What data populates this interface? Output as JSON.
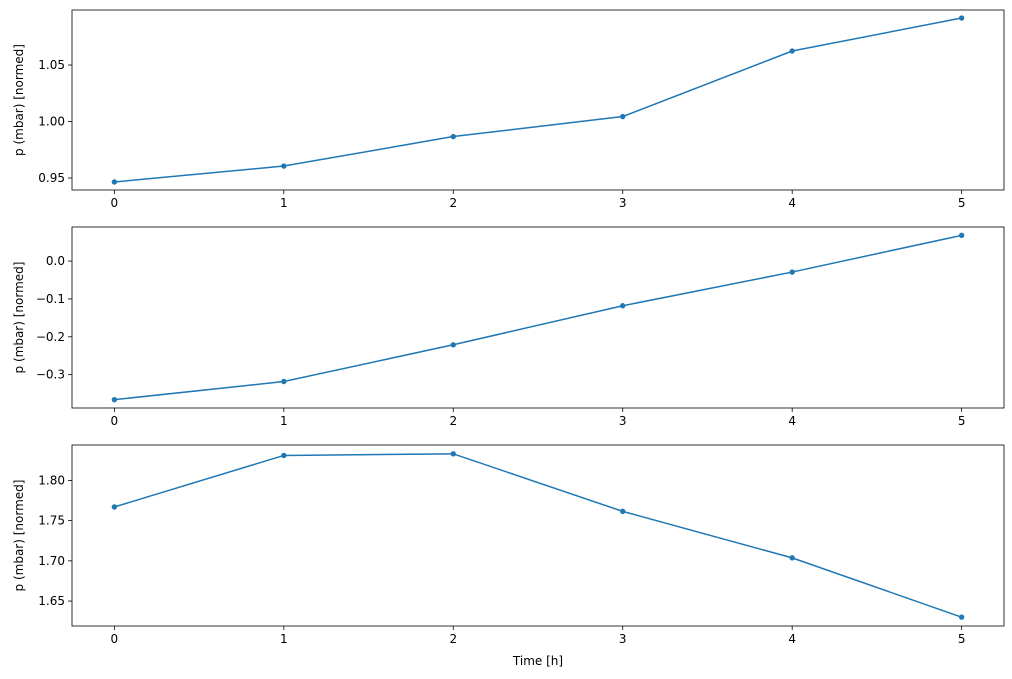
{
  "chart_data": [
    {
      "type": "line",
      "x": [
        0,
        1,
        2,
        3,
        4,
        5
      ],
      "values": [
        0.9465,
        0.9606,
        0.9867,
        1.0044,
        1.0624,
        1.0916
      ],
      "ylabel": "p (mbar) [normed]",
      "xlabel": "",
      "xlim": [
        -0.25,
        5.25
      ],
      "ylim": [
        0.9394,
        1.0987
      ],
      "yticks": [
        0.95,
        1.0,
        1.05
      ],
      "ytick_labels": [
        "0.95",
        "1.00",
        "1.05"
      ],
      "xticks": [
        0,
        1,
        2,
        3,
        4,
        5
      ],
      "xtick_labels": [
        "0",
        "1",
        "2",
        "3",
        "4",
        "5"
      ],
      "color": "#1f77b4",
      "marker": "dot",
      "grid": false
    },
    {
      "type": "line",
      "x": [
        0,
        1,
        2,
        3,
        4,
        5
      ],
      "values": [
        -0.366,
        -0.318,
        -0.221,
        -0.118,
        -0.029,
        0.068
      ],
      "ylabel": "p (mbar) [normed]",
      "xlabel": "",
      "xlim": [
        -0.25,
        5.25
      ],
      "ylim": [
        -0.388,
        0.09
      ],
      "yticks": [
        -0.3,
        -0.2,
        -0.1,
        0.0
      ],
      "ytick_labels": [
        "−0.3",
        "−0.2",
        "−0.1",
        "0.0"
      ],
      "xticks": [
        0,
        1,
        2,
        3,
        4,
        5
      ],
      "xtick_labels": [
        "0",
        "1",
        "2",
        "3",
        "4",
        "5"
      ],
      "color": "#1f77b4",
      "marker": "dot",
      "grid": false
    },
    {
      "type": "line",
      "x": [
        0,
        1,
        2,
        3,
        4,
        5
      ],
      "values": [
        1.767,
        1.831,
        1.833,
        1.7615,
        1.7037,
        1.63
      ],
      "ylabel": "p (mbar) [normed]",
      "xlabel": "Time [h]",
      "xlim": [
        -0.25,
        5.25
      ],
      "ylim": [
        1.619,
        1.844
      ],
      "yticks": [
        1.65,
        1.7,
        1.75,
        1.8
      ],
      "ytick_labels": [
        "1.65",
        "1.70",
        "1.75",
        "1.80"
      ],
      "xticks": [
        0,
        1,
        2,
        3,
        4,
        5
      ],
      "xtick_labels": [
        "0",
        "1",
        "2",
        "3",
        "4",
        "5"
      ],
      "color": "#1f77b4",
      "marker": "dot",
      "grid": false
    }
  ]
}
